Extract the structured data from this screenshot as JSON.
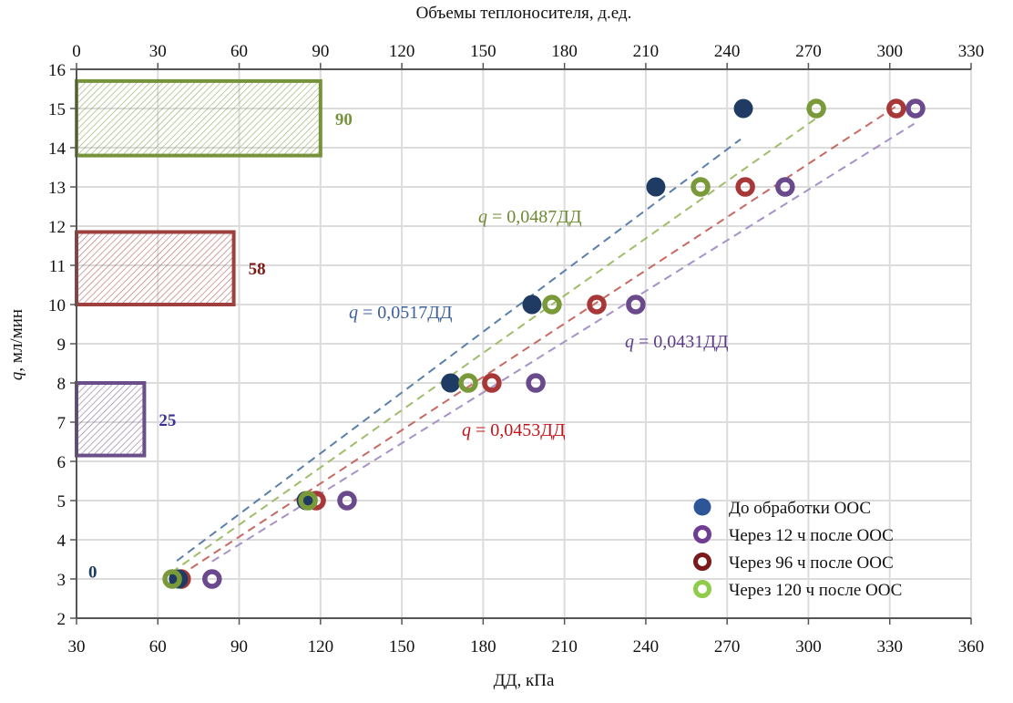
{
  "chart_data": {
    "type": "scatter",
    "title": "",
    "xlabel": "ДД, кПа",
    "ylabel_var": "q",
    "ylabel_rest": ", мл/мин",
    "x2label": "Объемы теплоносителя, д.ед.",
    "xlim": [
      30,
      360
    ],
    "ylim": [
      2,
      16
    ],
    "x2lim": [
      0,
      330
    ],
    "x_ticks": [
      30,
      60,
      90,
      120,
      150,
      180,
      210,
      240,
      270,
      300,
      330,
      360
    ],
    "y_ticks": [
      2,
      3,
      4,
      5,
      6,
      7,
      8,
      9,
      10,
      11,
      12,
      13,
      14,
      15,
      16
    ],
    "x2_ticks": [
      0,
      30,
      60,
      90,
      120,
      150,
      180,
      210,
      240,
      270,
      300,
      330
    ],
    "grid": true,
    "legend_position": "bottom-right",
    "series": [
      {
        "name": "До обработки ООС",
        "color": "#1f3b63",
        "legend_color": "#2e5597",
        "marker": "filled",
        "x": [
          67.6,
          114.7,
          168,
          198,
          243.7,
          276
        ],
        "y": [
          3,
          5,
          8,
          10,
          13,
          15
        ],
        "fit": {
          "slope": 0.0517,
          "label_var": "q",
          "label_rest": " = 0,0517ДД",
          "label_color": "#3a5f9a",
          "line_color": "#5b7fab",
          "x_range": [
            67,
            275
          ]
        }
      },
      {
        "name": "Через 12 ч после ООС",
        "color": "#6a4a8c",
        "legend_color": "#6f3d94",
        "marker": "ring",
        "x": [
          80,
          129.8,
          199.4,
          236.3,
          291.4,
          339.5
        ],
        "y": [
          3,
          5,
          8,
          10,
          13,
          15
        ],
        "fit": {
          "slope": 0.0431,
          "label_var": "q",
          "label_rest": " = 0,0431ДД",
          "label_color": "#5d3a8a",
          "line_color": "#a692c8",
          "x_range": [
            80,
            339
          ]
        }
      },
      {
        "name": "Через 96 ч после ООС",
        "color": "#a83838",
        "legend_color": "#7a1a1a",
        "marker": "ring",
        "x": [
          68.6,
          118.4,
          183.2,
          221.9,
          276.7,
          332.4
        ],
        "y": [
          3,
          5,
          8,
          10,
          13,
          15
        ],
        "fit": {
          "slope": 0.0453,
          "label_var": "q",
          "label_rest": " = 0,0453ДД",
          "label_color": "#c0151a",
          "line_color": "#c86a64",
          "x_range": [
            68,
            332
          ]
        }
      },
      {
        "name": "Через 120 ч после ООС",
        "color": "#7a9a3a",
        "legend_color": "#8fcc4a",
        "marker": "ring",
        "x": [
          65.3,
          115.4,
          174.5,
          205.4,
          260.2,
          302.9
        ],
        "y": [
          3,
          5,
          8,
          10,
          13,
          15
        ],
        "fit": {
          "slope": 0.0487,
          "label_var": "q",
          "label_rest": " = 0,0487ДД",
          "label_color": "#6d8a32",
          "line_color": "#9fbd6a",
          "x_range": [
            65,
            303
          ]
        }
      }
    ],
    "volume_bars": [
      {
        "value": 90,
        "y_from": 13.8,
        "y_to": 15.7,
        "color": "#76933c",
        "label": "90",
        "label_color": "#76933c"
      },
      {
        "value": 58,
        "y_from": 10.0,
        "y_to": 11.85,
        "color": "#a0403e",
        "label": "58",
        "label_color": "#7a1a12"
      },
      {
        "value": 25,
        "y_from": 6.15,
        "y_to": 8.0,
        "color": "#6a4f8a",
        "label": "25",
        "label_color": "#3a3192"
      },
      {
        "value": 0,
        "y_from": 3.2,
        "y_to": 3.2,
        "color": "#1f3b63",
        "label": "0",
        "label_color": "#1f3b63"
      }
    ]
  }
}
